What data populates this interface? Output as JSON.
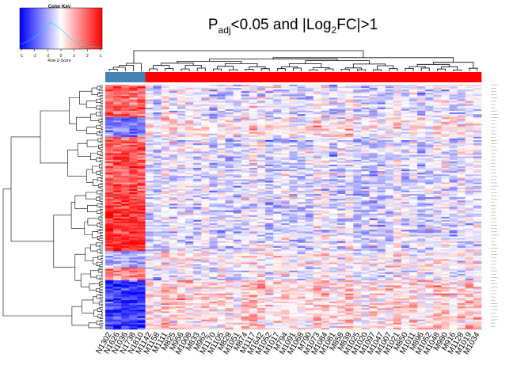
{
  "title": {
    "p": "P",
    "p_sub": "adj",
    "mid": "<0.05 and |Log",
    "log_sub": "2",
    "end": "FC|>1"
  },
  "color_key": {
    "title": "Color Key",
    "xlabel": "Row Z-Score",
    "ticks": [
      "-1",
      "-2",
      "-2",
      "0",
      "2",
      "2",
      "1"
    ],
    "colors": {
      "low": "#0000ff",
      "mid": "#ffffff",
      "high": "#ff0000"
    }
  },
  "groups": {
    "normal_color": "#4682b4",
    "tumor_color": "#ff0000"
  },
  "chart_data": {
    "type": "heatmap",
    "title": "Padj<0.05 and |Log2FC|>1",
    "color_scale": {
      "low": "#0000ff",
      "mid": "#ffffff",
      "high": "#ff0000",
      "range": [
        -2,
        2
      ]
    },
    "columns": [
      "N1302",
      "N1626",
      "N1036",
      "N1738",
      "N1810",
      "M1142",
      "M1158",
      "M1111",
      "M825",
      "M956",
      "M1008",
      "M833",
      "M962",
      "M1170",
      "M1105",
      "M828",
      "M1051",
      "M874",
      "M1117",
      "M1642",
      "M1052",
      "M1017",
      "M794",
      "M1091",
      "M1068",
      "M790",
      "M1073",
      "M1084",
      "M1081",
      "M858",
      "M839",
      "M1025",
      "M1020",
      "M1097",
      "M1047",
      "M1007",
      "M1021",
      "M850",
      "M1011",
      "M896",
      "M1052",
      "M1048",
      "M980",
      "M916",
      "M1128",
      "M1019",
      "M1034"
    ],
    "column_groups": [
      "normal",
      "normal",
      "normal",
      "normal",
      "normal",
      "tumor",
      "tumor",
      "tumor",
      "tumor",
      "tumor",
      "tumor",
      "tumor",
      "tumor",
      "tumor",
      "tumor",
      "tumor",
      "tumor",
      "tumor",
      "tumor",
      "tumor",
      "tumor",
      "tumor",
      "tumor",
      "tumor",
      "tumor",
      "tumor",
      "tumor",
      "tumor",
      "tumor",
      "tumor",
      "tumor",
      "tumor",
      "tumor",
      "tumor",
      "tumor",
      "tumor",
      "tumor",
      "tumor",
      "tumor",
      "tumor",
      "tumor",
      "tumor",
      "tumor",
      "tumor",
      "tumor",
      "tumor",
      "tumor"
    ],
    "row_blocks": [
      {
        "rows": 20,
        "normal_z": 1.2,
        "tumor_z": -0.2
      },
      {
        "rows": 12,
        "normal_z": -1.0,
        "tumor_z": 0.15
      },
      {
        "rows": 40,
        "normal_z": 1.3,
        "tumor_z": -0.25
      },
      {
        "rows": 30,
        "normal_z": 1.6,
        "tumor_z": -0.3
      },
      {
        "rows": 10,
        "normal_z": -0.6,
        "tumor_z": 0.1
      },
      {
        "rows": 8,
        "normal_z": 1.0,
        "tumor_z": -0.15
      },
      {
        "rows": 30,
        "normal_z": -1.5,
        "tumor_z": 0.3
      }
    ]
  }
}
